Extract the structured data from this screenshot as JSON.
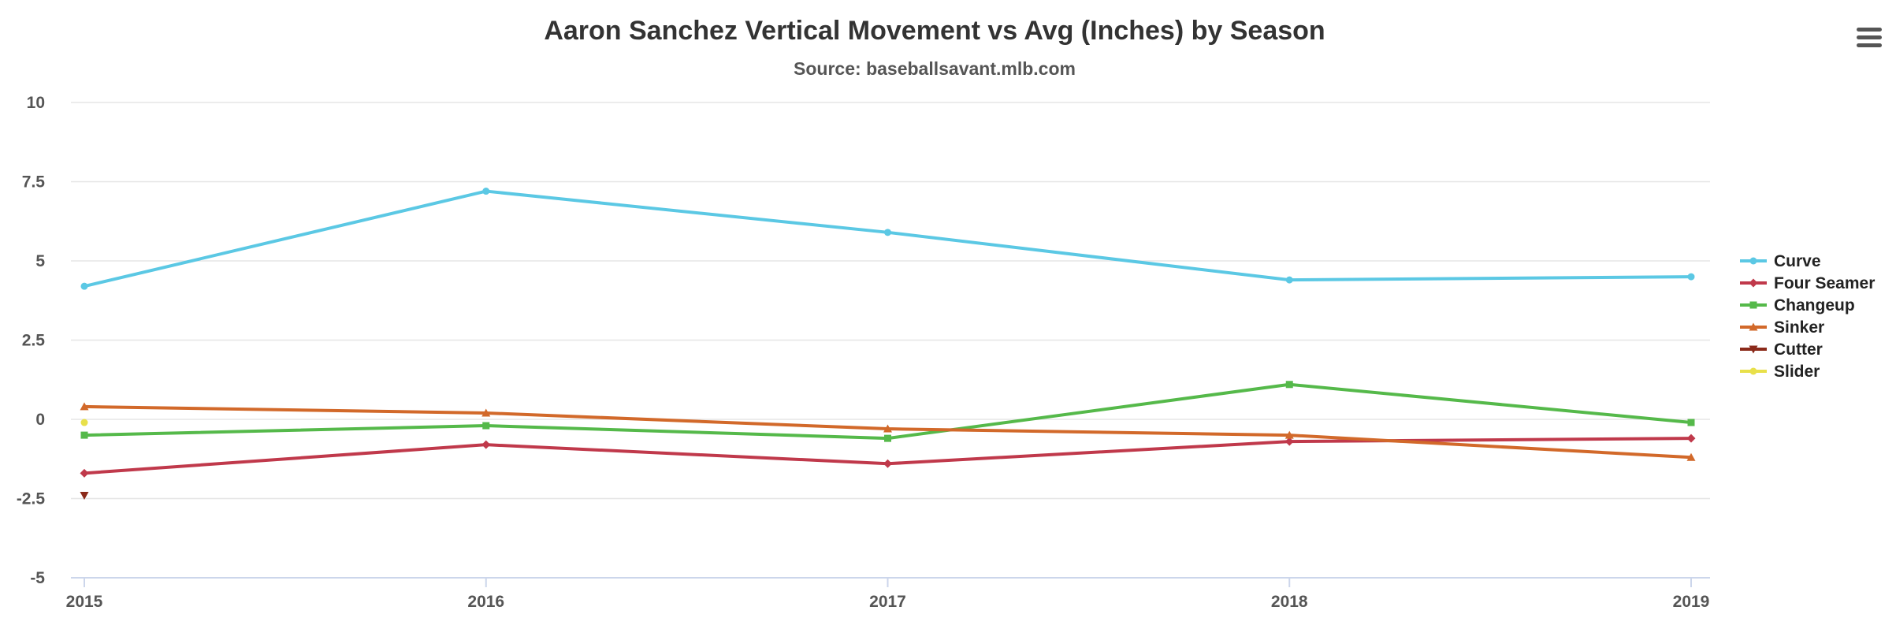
{
  "chart_data": {
    "type": "line",
    "title": "Aaron Sanchez Vertical Movement vs Avg (Inches) by Season",
    "subtitle": "Source: baseballsavant.mlb.com",
    "x": [
      "2015",
      "2016",
      "2017",
      "2018",
      "2019"
    ],
    "y_ticks": [
      "10",
      "7.5",
      "5",
      "2.5",
      "0",
      "-2.5",
      "-5"
    ],
    "ylim": [
      -5,
      10
    ],
    "grid": true,
    "legend_position": "right",
    "series": [
      {
        "name": "Curve",
        "color": "#5bc8e4",
        "marker": "circle",
        "values": [
          4.2,
          7.2,
          5.9,
          4.4,
          4.5
        ]
      },
      {
        "name": "Four Seamer",
        "color": "#c0394b",
        "marker": "diamond",
        "values": [
          -1.7,
          -0.8,
          -1.4,
          -0.7,
          -0.6
        ]
      },
      {
        "name": "Changeup",
        "color": "#55b94a",
        "marker": "square",
        "values": [
          -0.5,
          -0.2,
          -0.6,
          1.1,
          -0.1
        ]
      },
      {
        "name": "Sinker",
        "color": "#d2692a",
        "marker": "triangle",
        "values": [
          0.4,
          0.2,
          -0.3,
          -0.5,
          -1.2
        ]
      },
      {
        "name": "Cutter",
        "color": "#8b2a1a",
        "marker": "triangle-down",
        "values": [
          -2.4,
          null,
          null,
          null,
          null
        ]
      },
      {
        "name": "Slider",
        "color": "#e8e04a",
        "marker": "circle",
        "values": [
          -0.1,
          null,
          null,
          null,
          null
        ]
      }
    ]
  },
  "menu": {
    "icon": "hamburger-menu-icon"
  }
}
